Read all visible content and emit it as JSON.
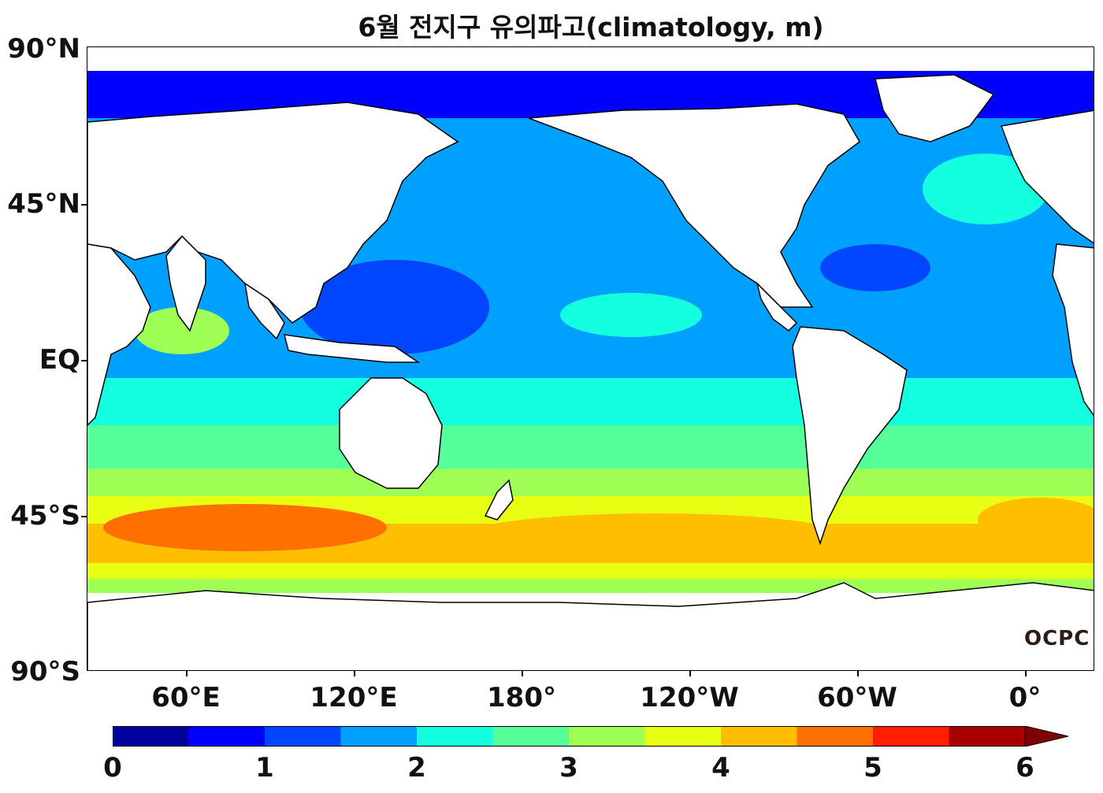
{
  "title": "6월 전지구 유의파고(climatology, m)",
  "map": {
    "projection": "equirectangular",
    "central_longitude": "160°W",
    "variable": "significant wave height",
    "units": "m"
  },
  "lat_labels": [
    "90°N",
    "45°N",
    "EQ",
    "45°S",
    "90°S"
  ],
  "lon_labels": [
    "60°E",
    "120°E",
    "180°",
    "120°W",
    "60°W",
    "0°"
  ],
  "colorbar": {
    "min": 0,
    "max": 6,
    "step": 0.5,
    "extend": "max",
    "tick_labels": [
      "0",
      "1",
      "2",
      "3",
      "4",
      "5",
      "6"
    ],
    "colors": [
      "#00009c",
      "#0000ff",
      "#0046ff",
      "#00a0ff",
      "#14ffe0",
      "#55ff99",
      "#a0ff55",
      "#e8ff14",
      "#ffbe00",
      "#ff7000",
      "#ff1e00",
      "#a80000",
      "#800000"
    ]
  },
  "logo": "OCPC",
  "colors": {
    "land": "#ffffff",
    "coastline": "#000000"
  }
}
